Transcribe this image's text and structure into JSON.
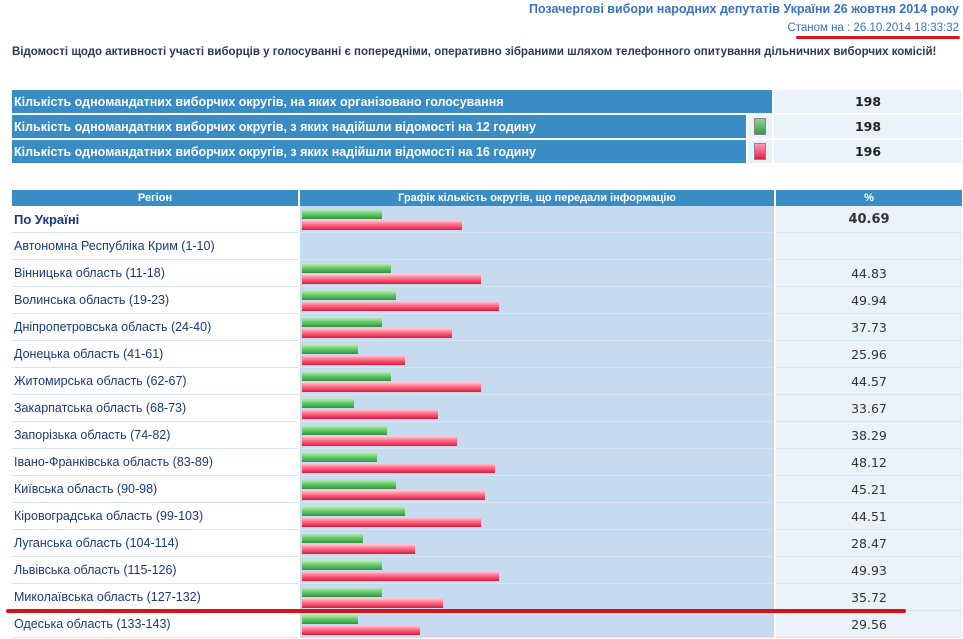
{
  "header": {
    "title": "Позачергові вибори народних депутатів України 26 жовтня 2014 року",
    "as_of": "Станом на : 26.10.2014 18:33:32"
  },
  "note": "Відомості щодо активності участі виборців у голосуванні є попередніми, оперативно зібраними шляхом телефонного опитування дільничних виборчих комісій!",
  "summary": [
    {
      "label": "Кількість одномандатних виборчих округів, на яких організовано голосування",
      "value": "198",
      "indicator": null
    },
    {
      "label": "Кількість одномандатних виборчих округів, з яких надійшли відомості на 12 годину",
      "value": "198",
      "indicator": "green"
    },
    {
      "label": "Кількість одномандатних виборчих округів, з яких надійшли відомості на 16 годину",
      "value": "196",
      "indicator": "red"
    }
  ],
  "table": {
    "headers": [
      "Регіон",
      "Графік кількість округів, що передали інформацію",
      "%"
    ],
    "rows": [
      {
        "name": "По Україні",
        "percent": "40.69",
        "green": 0.17,
        "red": 0.34,
        "bold": true
      },
      {
        "name": "Автономна Республіка Крим (1-10)",
        "percent": "",
        "green": 0,
        "red": 0
      },
      {
        "name": "Вінницька область (11-18)",
        "percent": "44.83",
        "green": 0.19,
        "red": 0.38
      },
      {
        "name": "Волинська область (19-23)",
        "percent": "49.94",
        "green": 0.2,
        "red": 0.42
      },
      {
        "name": "Дніпропетровська область (24-40)",
        "percent": "37.73",
        "green": 0.17,
        "red": 0.32
      },
      {
        "name": "Донецька область (41-61)",
        "percent": "25.96",
        "green": 0.12,
        "red": 0.22
      },
      {
        "name": "Житомирська область (62-67)",
        "percent": "44.57",
        "green": 0.19,
        "red": 0.38
      },
      {
        "name": "Закарпатська область (68-73)",
        "percent": "33.67",
        "green": 0.11,
        "red": 0.29
      },
      {
        "name": "Запорізька область (74-82)",
        "percent": "38.29",
        "green": 0.18,
        "red": 0.33
      },
      {
        "name": "Івано-Франківська область (83-89)",
        "percent": "48.12",
        "green": 0.16,
        "red": 0.41
      },
      {
        "name": "Київська область (90-98)",
        "percent": "45.21",
        "green": 0.2,
        "red": 0.39
      },
      {
        "name": "Кіровоградська область (99-103)",
        "percent": "44.51",
        "green": 0.22,
        "red": 0.38
      },
      {
        "name": "Луганська область (104-114)",
        "percent": "28.47",
        "green": 0.13,
        "red": 0.24
      },
      {
        "name": "Львівська область (115-126)",
        "percent": "49.93",
        "green": 0.17,
        "red": 0.42
      },
      {
        "name": "Миколаївська область (127-132)",
        "percent": "35.72",
        "green": 0.17,
        "red": 0.3
      },
      {
        "name": "Одеська область (133-143)",
        "percent": "29.56",
        "green": 0.12,
        "red": 0.25
      }
    ]
  },
  "colors": {
    "header_bg": "#3a8cc4",
    "graph_bg": "#c6daf0",
    "green_bar": "#2e9444",
    "red_bar": "#d91a3e",
    "annotation_red": "#e0161b"
  }
}
